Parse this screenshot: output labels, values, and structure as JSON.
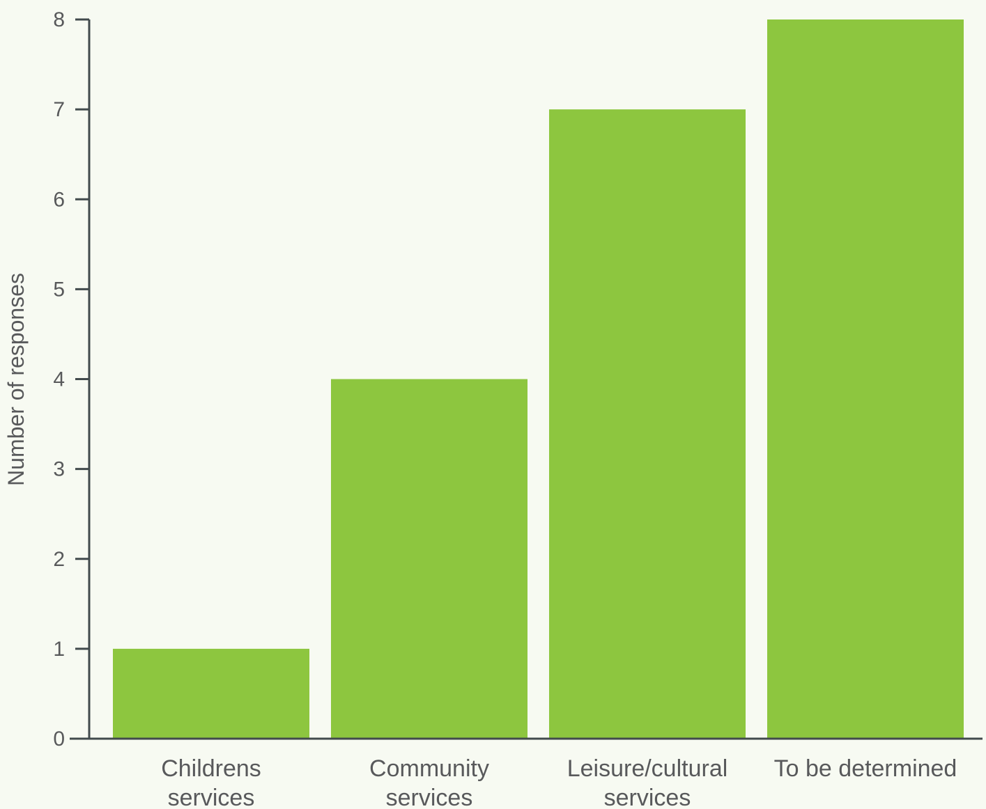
{
  "chart_data": {
    "type": "bar",
    "categories": [
      "Childrens services",
      "Community services",
      "Leisure/cultural services",
      "To be determined"
    ],
    "category_label_lines": [
      [
        "Childrens",
        "services"
      ],
      [
        "Community",
        "services"
      ],
      [
        "Leisure/cultural",
        "services"
      ],
      [
        "To be determined"
      ]
    ],
    "values": [
      1,
      4,
      7,
      8
    ],
    "title": "",
    "xlabel": "",
    "ylabel": "Number of responses",
    "ylim": [
      0,
      8
    ],
    "yticks": [
      "0",
      "1",
      "2",
      "3",
      "4",
      "5",
      "6",
      "7",
      "8"
    ],
    "grid": false,
    "legend": "none",
    "colors": {
      "bar": "#8dc63f",
      "axis": "#414a4c",
      "text": "#58595b",
      "background": "#f7faf2"
    }
  }
}
